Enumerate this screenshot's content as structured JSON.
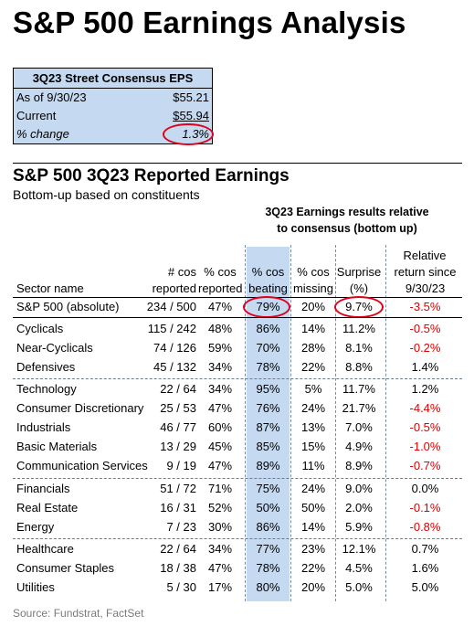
{
  "title": "S&P 500 Earnings Analysis",
  "eps_box": {
    "header": "3Q23 Street Consensus EPS",
    "rows": [
      {
        "label": "As of 9/30/23",
        "value": "$55.21"
      },
      {
        "label": "Current",
        "value": "$55.94"
      },
      {
        "label": "% change",
        "value": "1.3%"
      }
    ]
  },
  "table": {
    "title": "S&P 500 3Q23 Reported Earnings",
    "subtitle": "Bottom-up based on constituents",
    "group_header_line1": "3Q23 Earnings results relative",
    "group_header_line2": "to consensus (bottom up)",
    "headers": {
      "sector": "Sector name",
      "reported_1": "# cos",
      "reported_2": "reported",
      "pct_reported_1": "% cos",
      "pct_reported_2": "reported",
      "beating_1": "% cos",
      "beating_2": "beating",
      "missing_1": "% cos",
      "missing_2": "missing",
      "surprise_1": "Surprise",
      "surprise_2": "(%)",
      "relative_1": "Relative",
      "relative_2": "return since",
      "relative_3": "9/30/23"
    },
    "rows": [
      {
        "name": "S&P 500 (absolute)",
        "reported": "234 / 500",
        "pct_reported": "47%",
        "beating": "79%",
        "missing": "20%",
        "surprise": "9.7%",
        "relative": "-3.5%"
      },
      {
        "name": "Cyclicals",
        "reported": "115 / 242",
        "pct_reported": "48%",
        "beating": "86%",
        "missing": "14%",
        "surprise": "11.2%",
        "relative": "-0.5%"
      },
      {
        "name": "Near-Cyclicals",
        "reported": "74 / 126",
        "pct_reported": "59%",
        "beating": "70%",
        "missing": "28%",
        "surprise": "8.1%",
        "relative": "-0.2%"
      },
      {
        "name": "Defensives",
        "reported": "45 / 132",
        "pct_reported": "34%",
        "beating": "78%",
        "missing": "22%",
        "surprise": "8.8%",
        "relative": "1.4%"
      },
      {
        "name": "Technology",
        "reported": "22 / 64",
        "pct_reported": "34%",
        "beating": "95%",
        "missing": "5%",
        "surprise": "11.7%",
        "relative": "1.2%"
      },
      {
        "name": "Consumer Discretionary",
        "reported": "25 / 53",
        "pct_reported": "47%",
        "beating": "76%",
        "missing": "24%",
        "surprise": "21.7%",
        "relative": "-4.4%"
      },
      {
        "name": "Industrials",
        "reported": "46 / 77",
        "pct_reported": "60%",
        "beating": "87%",
        "missing": "13%",
        "surprise": "7.0%",
        "relative": "-0.5%"
      },
      {
        "name": "Basic Materials",
        "reported": "13 / 29",
        "pct_reported": "45%",
        "beating": "85%",
        "missing": "15%",
        "surprise": "4.9%",
        "relative": "-1.0%"
      },
      {
        "name": "Communication Services",
        "reported": "9 / 19",
        "pct_reported": "47%",
        "beating": "89%",
        "missing": "11%",
        "surprise": "8.9%",
        "relative": "-0.7%"
      },
      {
        "name": "Financials",
        "reported": "51 / 72",
        "pct_reported": "71%",
        "beating": "75%",
        "missing": "24%",
        "surprise": "9.0%",
        "relative": "0.0%"
      },
      {
        "name": "Real Estate",
        "reported": "16 / 31",
        "pct_reported": "52%",
        "beating": "50%",
        "missing": "50%",
        "surprise": "2.0%",
        "relative": "-0.1%"
      },
      {
        "name": "Energy",
        "reported": "7 / 23",
        "pct_reported": "30%",
        "beating": "86%",
        "missing": "14%",
        "surprise": "5.9%",
        "relative": "-0.8%"
      },
      {
        "name": "Healthcare",
        "reported": "22 / 64",
        "pct_reported": "34%",
        "beating": "77%",
        "missing": "23%",
        "surprise": "12.1%",
        "relative": "0.7%"
      },
      {
        "name": "Consumer Staples",
        "reported": "18 / 38",
        "pct_reported": "47%",
        "beating": "78%",
        "missing": "22%",
        "surprise": "4.5%",
        "relative": "1.6%"
      },
      {
        "name": "Utilities",
        "reported": "5 / 30",
        "pct_reported": "17%",
        "beating": "80%",
        "missing": "20%",
        "surprise": "5.0%",
        "relative": "5.0%"
      }
    ]
  },
  "source": "Source: Fundstrat, FactSet",
  "colors": {
    "shade": "#c5d9f1",
    "negative": "#e00000",
    "highlight_circle": "#e0001a"
  }
}
